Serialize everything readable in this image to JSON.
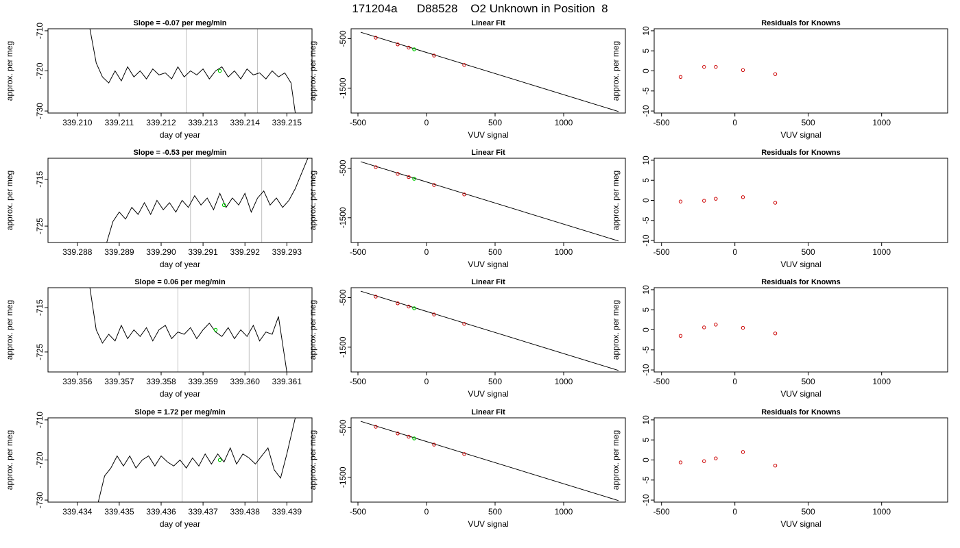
{
  "page_title": "171204a      D88528    O2 Unknown in Position  8",
  "colors": {
    "line": "#000000",
    "reference_line": "#bfbfbf",
    "known_point": "#cc0000",
    "unknown_point": "#00cc00"
  },
  "chart_data": [
    {
      "type": "line",
      "title": "Slope =  -0.07  per meg/min",
      "xlabel": "day of year",
      "ylabel": "approx. per meg",
      "xlim": [
        339.2093,
        339.2156
      ],
      "ylim": [
        -730.5,
        -709.5
      ],
      "xticks": [
        339.21,
        339.211,
        339.212,
        339.213,
        339.214,
        339.215
      ],
      "xtick_decimals": 3,
      "yticks": [
        -730,
        -720,
        -710
      ],
      "vlines": [
        339.2126,
        339.2143
      ],
      "marker": {
        "x": 339.2134,
        "y": -720.0
      },
      "x": [
        339.2103,
        339.21045,
        339.2106,
        339.21075,
        339.2109,
        339.21105,
        339.2112,
        339.21135,
        339.2115,
        339.21165,
        339.2118,
        339.21195,
        339.2121,
        339.21225,
        339.2124,
        339.21255,
        339.2127,
        339.21285,
        339.213,
        339.21315,
        339.2133,
        339.21345,
        339.2136,
        339.21375,
        339.2139,
        339.21405,
        339.2142,
        339.21435,
        339.2145,
        339.21465,
        339.2148,
        339.21495,
        339.2151,
        339.2152
      ],
      "y": [
        -709.5,
        -718.0,
        -721.5,
        -723.0,
        -720.0,
        -722.5,
        -719.0,
        -721.5,
        -720.0,
        -722.0,
        -719.5,
        -721.0,
        -720.5,
        -722.0,
        -719.0,
        -721.5,
        -720.0,
        -721.0,
        -719.5,
        -722.0,
        -720.0,
        -719.0,
        -721.5,
        -720.0,
        -722.0,
        -719.5,
        -721.0,
        -720.5,
        -722.0,
        -720.0,
        -721.5,
        -720.5,
        -723.0,
        -730.5
      ]
    },
    {
      "type": "scatter",
      "title": "Linear Fit",
      "xlabel": "VUV signal",
      "ylabel": "approx. per meg",
      "xlim": [
        -550,
        1450
      ],
      "ylim": [
        -2000,
        -300
      ],
      "xticks": [
        -500,
        0,
        500,
        1000
      ],
      "yticks": [
        -500,
        -1500
      ],
      "ytick_labels": [
        "-500",
        "-1500"
      ],
      "fit_line": {
        "x": [
          -480,
          1400
        ],
        "y": [
          -370,
          -1970
        ]
      },
      "knowns": {
        "x": [
          -370,
          -210,
          -130,
          55,
          275
        ],
        "y": [
          -480,
          -615,
          -680,
          -840,
          -1030
        ]
      },
      "unknown": {
        "x": [
          -90
        ],
        "y": [
          -715
        ]
      }
    },
    {
      "type": "scatter",
      "title": "Residuals for Knowns",
      "xlabel": "VUV signal",
      "ylabel": "approx. per meg",
      "xlim": [
        -550,
        1450
      ],
      "ylim": [
        -10.5,
        10.5
      ],
      "xticks": [
        -500,
        0,
        500,
        1000
      ],
      "yticks": [
        -10,
        -5,
        0,
        5,
        10
      ],
      "knowns": {
        "x": [
          -370,
          -210,
          -130,
          55,
          275
        ],
        "y": [
          -1.5,
          1.0,
          1.0,
          0.2,
          -0.8
        ]
      }
    },
    {
      "type": "line",
      "title": "Slope =  -0.53  per meg/min",
      "xlabel": "day of year",
      "ylabel": "approx. per meg",
      "xlim": [
        339.2873,
        339.2936
      ],
      "ylim": [
        -728.5,
        -710.5
      ],
      "xticks": [
        339.288,
        339.289,
        339.29,
        339.291,
        339.292,
        339.293
      ],
      "xtick_decimals": 3,
      "yticks": [
        -725,
        -715
      ],
      "vlines": [
        339.2907,
        339.2924
      ],
      "marker": {
        "x": 339.2915,
        "y": -720.5
      },
      "x": [
        339.2887,
        339.28885,
        339.289,
        339.28915,
        339.2893,
        339.28945,
        339.2896,
        339.28975,
        339.2899,
        339.29005,
        339.2902,
        339.29035,
        339.2905,
        339.29065,
        339.2908,
        339.29095,
        339.2911,
        339.29125,
        339.2914,
        339.29155,
        339.2917,
        339.29185,
        339.292,
        339.29215,
        339.2923,
        339.29245,
        339.2926,
        339.29275,
        339.2929,
        339.29305,
        339.2932,
        339.2935
      ],
      "y": [
        -728.5,
        -724.0,
        -722.0,
        -723.5,
        -721.0,
        -722.5,
        -720.0,
        -722.5,
        -719.5,
        -721.5,
        -720.0,
        -722.0,
        -719.5,
        -721.0,
        -718.5,
        -720.5,
        -719.0,
        -721.5,
        -718.0,
        -721.0,
        -719.0,
        -720.5,
        -718.0,
        -722.0,
        -719.0,
        -717.5,
        -720.5,
        -719.0,
        -721.0,
        -719.5,
        -717.0,
        -710.5
      ]
    },
    {
      "type": "scatter",
      "title": "Linear Fit",
      "xlabel": "VUV signal",
      "ylabel": "approx. per meg",
      "xlim": [
        -550,
        1450
      ],
      "ylim": [
        -2000,
        -300
      ],
      "xticks": [
        -500,
        0,
        500,
        1000
      ],
      "yticks": [
        -500,
        -1500
      ],
      "ytick_labels": [
        "-500",
        "-1500"
      ],
      "fit_line": {
        "x": [
          -480,
          1400
        ],
        "y": [
          -370,
          -1970
        ]
      },
      "knowns": {
        "x": [
          -370,
          -210,
          -130,
          55,
          275
        ],
        "y": [
          -480,
          -615,
          -680,
          -840,
          -1030
        ]
      },
      "unknown": {
        "x": [
          -90
        ],
        "y": [
          -715
        ]
      }
    },
    {
      "type": "scatter",
      "title": "Residuals for Knowns",
      "xlabel": "VUV signal",
      "ylabel": "approx. per meg",
      "xlim": [
        -550,
        1450
      ],
      "ylim": [
        -10.5,
        10.5
      ],
      "xticks": [
        -500,
        0,
        500,
        1000
      ],
      "yticks": [
        -10,
        -5,
        0,
        5,
        10
      ],
      "knowns": {
        "x": [
          -370,
          -210,
          -130,
          55,
          275
        ],
        "y": [
          -0.3,
          -0.1,
          0.4,
          0.8,
          -0.6
        ]
      }
    },
    {
      "type": "line",
      "title": "Slope =  0.06  per meg/min",
      "xlabel": "day of year",
      "ylabel": "approx. per meg",
      "xlim": [
        339.3553,
        339.3616
      ],
      "ylim": [
        -729.5,
        -710.5
      ],
      "xticks": [
        339.356,
        339.357,
        339.358,
        339.359,
        339.36,
        339.361
      ],
      "xtick_decimals": 3,
      "yticks": [
        -725,
        -715
      ],
      "vlines": [
        339.3584,
        339.3601
      ],
      "marker": {
        "x": 339.3593,
        "y": -720.0
      },
      "x": [
        339.3563,
        339.35645,
        339.3566,
        339.35675,
        339.3569,
        339.35705,
        339.3572,
        339.35735,
        339.3575,
        339.35765,
        339.3578,
        339.35795,
        339.3581,
        339.35825,
        339.3584,
        339.35855,
        339.3587,
        339.35885,
        339.359,
        339.35915,
        339.3593,
        339.35945,
        339.3596,
        339.35975,
        339.3599,
        339.36005,
        339.3602,
        339.36035,
        339.3605,
        339.36065,
        339.3608,
        339.361
      ],
      "y": [
        -710.5,
        -720.0,
        -723.0,
        -721.0,
        -722.5,
        -719.0,
        -722.0,
        -720.0,
        -721.5,
        -719.5,
        -722.5,
        -720.0,
        -719.0,
        -722.0,
        -720.5,
        -721.0,
        -719.5,
        -722.0,
        -720.0,
        -718.5,
        -720.5,
        -721.5,
        -719.5,
        -722.0,
        -720.0,
        -721.5,
        -719.0,
        -722.5,
        -720.5,
        -721.0,
        -717.0,
        -729.5
      ]
    },
    {
      "type": "scatter",
      "title": "Linear Fit",
      "xlabel": "VUV signal",
      "ylabel": "approx. per meg",
      "xlim": [
        -550,
        1450
      ],
      "ylim": [
        -2000,
        -300
      ],
      "xticks": [
        -500,
        0,
        500,
        1000
      ],
      "yticks": [
        -500,
        -1500
      ],
      "ytick_labels": [
        "-500",
        "-1500"
      ],
      "fit_line": {
        "x": [
          -480,
          1400
        ],
        "y": [
          -370,
          -1970
        ]
      },
      "knowns": {
        "x": [
          -370,
          -210,
          -130,
          55,
          275
        ],
        "y": [
          -480,
          -615,
          -680,
          -840,
          -1030
        ]
      },
      "unknown": {
        "x": [
          -90
        ],
        "y": [
          -715
        ]
      }
    },
    {
      "type": "scatter",
      "title": "Residuals for Knowns",
      "xlabel": "VUV signal",
      "ylabel": "approx. per meg",
      "xlim": [
        -550,
        1450
      ],
      "ylim": [
        -10.5,
        10.5
      ],
      "xticks": [
        -500,
        0,
        500,
        1000
      ],
      "yticks": [
        -10,
        -5,
        0,
        5,
        10
      ],
      "knowns": {
        "x": [
          -370,
          -210,
          -130,
          55,
          275
        ],
        "y": [
          -1.5,
          0.6,
          1.3,
          0.5,
          -0.9
        ]
      }
    },
    {
      "type": "line",
      "title": "Slope =  1.72  per meg/min",
      "xlabel": "day of year",
      "ylabel": "approx. per meg",
      "xlim": [
        339.4333,
        339.4396
      ],
      "ylim": [
        -730.5,
        -709.5
      ],
      "xticks": [
        339.434,
        339.435,
        339.436,
        339.437,
        339.438,
        339.439
      ],
      "xtick_decimals": 3,
      "yticks": [
        -730,
        -720,
        -710
      ],
      "vlines": [
        339.4365,
        339.4383
      ],
      "marker": {
        "x": 339.4374,
        "y": -720.0
      },
      "x": [
        339.4345,
        339.43465,
        339.4348,
        339.43495,
        339.4351,
        339.43525,
        339.4354,
        339.43555,
        339.4357,
        339.43585,
        339.436,
        339.43615,
        339.4363,
        339.43645,
        339.4366,
        339.43675,
        339.4369,
        339.43705,
        339.4372,
        339.43735,
        339.4375,
        339.43765,
        339.4378,
        339.43795,
        339.4381,
        339.43825,
        339.4384,
        339.43855,
        339.4387,
        339.43885,
        339.439,
        339.4392
      ],
      "y": [
        -730.5,
        -724.0,
        -722.0,
        -719.0,
        -721.5,
        -719.0,
        -722.0,
        -720.0,
        -719.0,
        -721.5,
        -719.0,
        -720.5,
        -721.5,
        -720.0,
        -722.0,
        -719.5,
        -721.5,
        -718.5,
        -721.0,
        -718.5,
        -720.5,
        -717.0,
        -721.0,
        -718.5,
        -719.5,
        -721.0,
        -719.0,
        -717.0,
        -722.5,
        -724.5,
        -718.5,
        -709.5
      ]
    },
    {
      "type": "scatter",
      "title": "Linear Fit",
      "xlabel": "VUV signal",
      "ylabel": "approx. per meg",
      "xlim": [
        -550,
        1450
      ],
      "ylim": [
        -2000,
        -300
      ],
      "xticks": [
        -500,
        0,
        500,
        1000
      ],
      "yticks": [
        -500,
        -1500
      ],
      "ytick_labels": [
        "-500",
        "-1500"
      ],
      "fit_line": {
        "x": [
          -480,
          1400
        ],
        "y": [
          -370,
          -1970
        ]
      },
      "knowns": {
        "x": [
          -370,
          -210,
          -130,
          55,
          275
        ],
        "y": [
          -480,
          -615,
          -680,
          -840,
          -1030
        ]
      },
      "unknown": {
        "x": [
          -90
        ],
        "y": [
          -715
        ]
      }
    },
    {
      "type": "scatter",
      "title": "Residuals for Knowns",
      "xlabel": "VUV signal",
      "ylabel": "approx. per meg",
      "xlim": [
        -550,
        1450
      ],
      "ylim": [
        -10.5,
        10.5
      ],
      "xticks": [
        -500,
        0,
        500,
        1000
      ],
      "yticks": [
        -10,
        -5,
        0,
        5,
        10
      ],
      "knowns": {
        "x": [
          -370,
          -210,
          -130,
          55,
          275
        ],
        "y": [
          -0.6,
          -0.3,
          0.4,
          2.0,
          -1.4
        ]
      }
    }
  ]
}
